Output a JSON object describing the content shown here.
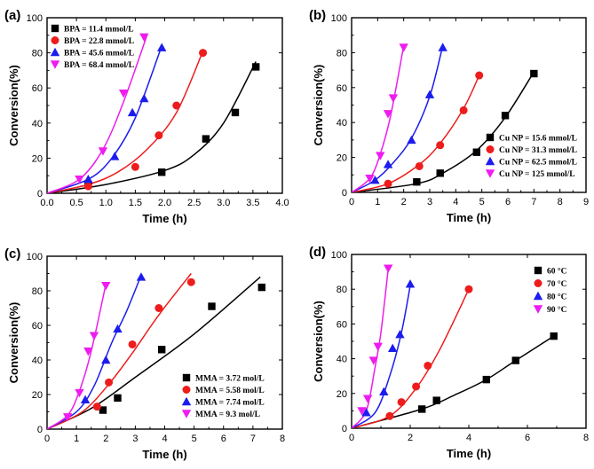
{
  "chart_data": [
    {
      "type": "scatter",
      "panel_label": "(a)",
      "xlabel": "Time (h)",
      "ylabel": "Conversion(%)",
      "xlim": [
        0,
        4.0
      ],
      "ylim": [
        0,
        100
      ],
      "xticks": [
        "0.0",
        "0.5",
        "1.0",
        "1.5",
        "2.0",
        "2.5",
        "3.0",
        "3.5",
        "4.0"
      ],
      "yticks": [
        "0",
        "20",
        "40",
        "60",
        "80",
        "100"
      ],
      "legend_position": "top-left",
      "series": [
        {
          "name": "BPA = 11.4 mmol/L",
          "color": "#000000",
          "marker": "square",
          "points": [
            [
              0.7,
              5
            ],
            [
              1.95,
              12
            ],
            [
              2.7,
              31
            ],
            [
              3.2,
              46
            ],
            [
              3.55,
              72
            ]
          ],
          "curve": [
            [
              0,
              0
            ],
            [
              1,
              5
            ],
            [
              2,
              13
            ],
            [
              2.5,
              22
            ],
            [
              3,
              40
            ],
            [
              3.55,
              75
            ]
          ]
        },
        {
          "name": "BPA = 22.8 mmol/L",
          "color": "#ee1c1c",
          "marker": "circle",
          "points": [
            [
              0.7,
              4
            ],
            [
              1.5,
              15
            ],
            [
              1.9,
              33
            ],
            [
              2.2,
              50
            ],
            [
              2.65,
              80
            ]
          ],
          "curve": [
            [
              0,
              0
            ],
            [
              0.7,
              5
            ],
            [
              1.2,
              12
            ],
            [
              1.7,
              25
            ],
            [
              2.2,
              46
            ],
            [
              2.65,
              81
            ]
          ]
        },
        {
          "name": "BPA = 45.6 mmol/L",
          "color": "#1c1cee",
          "marker": "triangle-up",
          "points": [
            [
              0.7,
              8
            ],
            [
              1.15,
              21
            ],
            [
              1.45,
              46
            ],
            [
              1.65,
              54
            ],
            [
              1.95,
              83
            ]
          ],
          "curve": [
            [
              0,
              0
            ],
            [
              0.7,
              8
            ],
            [
              1.1,
              20
            ],
            [
              1.5,
              43
            ],
            [
              1.95,
              84
            ]
          ]
        },
        {
          "name": "BPA = 68.4 mmol/L",
          "color": "#ee1cee",
          "marker": "triangle-down",
          "points": [
            [
              0.55,
              8
            ],
            [
              0.95,
              24
            ],
            [
              1.3,
              57
            ],
            [
              1.65,
              89
            ]
          ],
          "curve": [
            [
              0,
              0
            ],
            [
              0.55,
              8
            ],
            [
              0.95,
              25
            ],
            [
              1.3,
              52
            ],
            [
              1.7,
              90
            ]
          ]
        }
      ]
    },
    {
      "type": "scatter",
      "panel_label": "(b)",
      "xlabel": "Time (h)",
      "ylabel": "Conversion(%)",
      "xlim": [
        0,
        9
      ],
      "ylim": [
        0,
        100
      ],
      "xticks": [
        "0",
        "1",
        "2",
        "3",
        "4",
        "5",
        "6",
        "7",
        "8",
        "9"
      ],
      "yticks": [
        "0",
        "20",
        "40",
        "60",
        "80",
        "100"
      ],
      "legend_position": "bottom-right",
      "series": [
        {
          "name": "Cu NP = 15.6 mmol/L",
          "color": "#000000",
          "marker": "square",
          "points": [
            [
              2.5,
              6
            ],
            [
              3.4,
              11
            ],
            [
              4.8,
              23
            ],
            [
              5.9,
              44
            ],
            [
              7.0,
              68
            ]
          ],
          "curve": [
            [
              0,
              0
            ],
            [
              2.5,
              5
            ],
            [
              3.5,
              11
            ],
            [
              4.8,
              24
            ],
            [
              5.9,
              43
            ],
            [
              7.0,
              69
            ]
          ]
        },
        {
          "name": "Cu NP = 31.3 mmol/L",
          "color": "#ee1c1c",
          "marker": "circle",
          "points": [
            [
              1.4,
              5
            ],
            [
              2.6,
              15
            ],
            [
              3.4,
              27
            ],
            [
              4.3,
              47
            ],
            [
              4.9,
              67
            ]
          ],
          "curve": [
            [
              0,
              0
            ],
            [
              1.4,
              5
            ],
            [
              2.6,
              16
            ],
            [
              3.4,
              28
            ],
            [
              4.3,
              48
            ],
            [
              4.9,
              67
            ]
          ]
        },
        {
          "name": "Cu NP = 62.5 mmol/L",
          "color": "#1c1cee",
          "marker": "triangle-up",
          "points": [
            [
              0.9,
              7
            ],
            [
              1.4,
              16
            ],
            [
              2.3,
              30
            ],
            [
              3.0,
              56
            ],
            [
              3.5,
              83
            ]
          ],
          "curve": [
            [
              0,
              0
            ],
            [
              0.9,
              7
            ],
            [
              1.6,
              17
            ],
            [
              2.3,
              31
            ],
            [
              3.0,
              55
            ],
            [
              3.5,
              84
            ]
          ]
        },
        {
          "name": "Cu NP = 125 mmol/L",
          "color": "#ee1cee",
          "marker": "triangle-down",
          "points": [
            [
              0.7,
              8
            ],
            [
              1.1,
              21
            ],
            [
              1.4,
              45
            ],
            [
              1.6,
              54
            ],
            [
              2.0,
              83
            ]
          ],
          "curve": [
            [
              0,
              0
            ],
            [
              0.7,
              8
            ],
            [
              1.1,
              22
            ],
            [
              1.5,
              44
            ],
            [
              2.0,
              84
            ]
          ]
        }
      ]
    },
    {
      "type": "scatter",
      "panel_label": "(c)",
      "xlabel": "Time (h)",
      "ylabel": "Conversion(%)",
      "xlim": [
        0,
        8
      ],
      "ylim": [
        0,
        100
      ],
      "xticks": [
        "0",
        "1",
        "2",
        "3",
        "4",
        "5",
        "6",
        "7",
        "8"
      ],
      "yticks": [
        "0",
        "20",
        "40",
        "60",
        "80",
        "100"
      ],
      "legend_position": "bottom-right",
      "series": [
        {
          "name": "MMA = 3.72 mol/L",
          "color": "#000000",
          "marker": "square",
          "points": [
            [
              1.9,
              11
            ],
            [
              2.4,
              18
            ],
            [
              3.9,
              46
            ],
            [
              5.6,
              71
            ],
            [
              7.3,
              82
            ]
          ],
          "curve": [
            [
              0,
              0
            ],
            [
              1.5,
              12
            ],
            [
              3,
              30
            ],
            [
              5,
              55
            ],
            [
              7.25,
              88
            ]
          ]
        },
        {
          "name": "MMA = 5.58 mol/L",
          "color": "#ee1c1c",
          "marker": "circle",
          "points": [
            [
              1.7,
              13
            ],
            [
              2.1,
              27
            ],
            [
              2.9,
              49
            ],
            [
              3.8,
              70
            ],
            [
              4.9,
              85
            ]
          ],
          "curve": [
            [
              0,
              0
            ],
            [
              1.2,
              10
            ],
            [
              2.1,
              26
            ],
            [
              2.9,
              44
            ],
            [
              3.8,
              66
            ],
            [
              4.9,
              90
            ]
          ]
        },
        {
          "name": "MMA = 7.74 mol/L",
          "color": "#1c1cee",
          "marker": "triangle-up",
          "points": [
            [
              1.3,
              17
            ],
            [
              2.0,
              40
            ],
            [
              2.4,
              58
            ],
            [
              3.2,
              88
            ]
          ],
          "curve": [
            [
              0,
              0
            ],
            [
              1.0,
              10
            ],
            [
              1.6,
              25
            ],
            [
              2.2,
              50
            ],
            [
              2.7,
              68
            ],
            [
              3.2,
              89
            ]
          ]
        },
        {
          "name": "MMA = 9.3 mol/L",
          "color": "#ee1cee",
          "marker": "triangle-down",
          "points": [
            [
              0.7,
              7
            ],
            [
              1.1,
              21
            ],
            [
              1.4,
              45
            ],
            [
              1.6,
              54
            ],
            [
              2.0,
              83
            ]
          ],
          "curve": [
            [
              0,
              0
            ],
            [
              0.7,
              8
            ],
            [
              1.1,
              22
            ],
            [
              1.5,
              45
            ],
            [
              2.0,
              84
            ]
          ]
        }
      ]
    },
    {
      "type": "scatter",
      "panel_label": "(d)",
      "xlabel": "Time (h)",
      "ylabel": "Conversion(%)",
      "xlim": [
        0,
        8
      ],
      "ylim": [
        0,
        100
      ],
      "xticks": [
        "0",
        "2",
        "4",
        "6",
        "8"
      ],
      "yticks": [
        "0",
        "20",
        "40",
        "60",
        "80",
        "100"
      ],
      "legend_position": "top-right",
      "series": [
        {
          "name": "60 °C",
          "color": "#000000",
          "marker": "square",
          "points": [
            [
              2.4,
              11
            ],
            [
              2.9,
              16
            ],
            [
              4.6,
              28
            ],
            [
              5.6,
              39
            ],
            [
              6.9,
              53
            ]
          ],
          "curve": [
            [
              0,
              0
            ],
            [
              2.4,
              11
            ],
            [
              3.5,
              19
            ],
            [
              4.6,
              28
            ],
            [
              5.6,
              39
            ],
            [
              6.9,
              53
            ]
          ]
        },
        {
          "name": "70 °C",
          "color": "#ee1c1c",
          "marker": "circle",
          "points": [
            [
              1.3,
              7
            ],
            [
              1.7,
              15
            ],
            [
              2.2,
              24
            ],
            [
              2.6,
              36
            ],
            [
              4.0,
              80
            ]
          ],
          "curve": [
            [
              0,
              0
            ],
            [
              1.3,
              7
            ],
            [
              2.2,
              23
            ],
            [
              3.0,
              45
            ],
            [
              4.0,
              80
            ]
          ]
        },
        {
          "name": "80 °C",
          "color": "#1c1cee",
          "marker": "triangle-up",
          "points": [
            [
              0.5,
              9
            ],
            [
              1.1,
              21
            ],
            [
              1.4,
              46
            ],
            [
              1.65,
              54
            ],
            [
              2.0,
              83
            ]
          ],
          "curve": [
            [
              0,
              0
            ],
            [
              0.8,
              9
            ],
            [
              1.3,
              30
            ],
            [
              1.7,
              55
            ],
            [
              2.0,
              82
            ]
          ]
        },
        {
          "name": "90 °C",
          "color": "#ee1cee",
          "marker": "triangle-down",
          "points": [
            [
              0.35,
              10
            ],
            [
              0.55,
              17
            ],
            [
              0.75,
              39
            ],
            [
              0.9,
              47
            ],
            [
              1.25,
              92
            ]
          ],
          "curve": [
            [
              0,
              0
            ],
            [
              0.5,
              10
            ],
            [
              0.8,
              35
            ],
            [
              1.0,
              55
            ],
            [
              1.25,
              92
            ]
          ]
        }
      ]
    }
  ]
}
